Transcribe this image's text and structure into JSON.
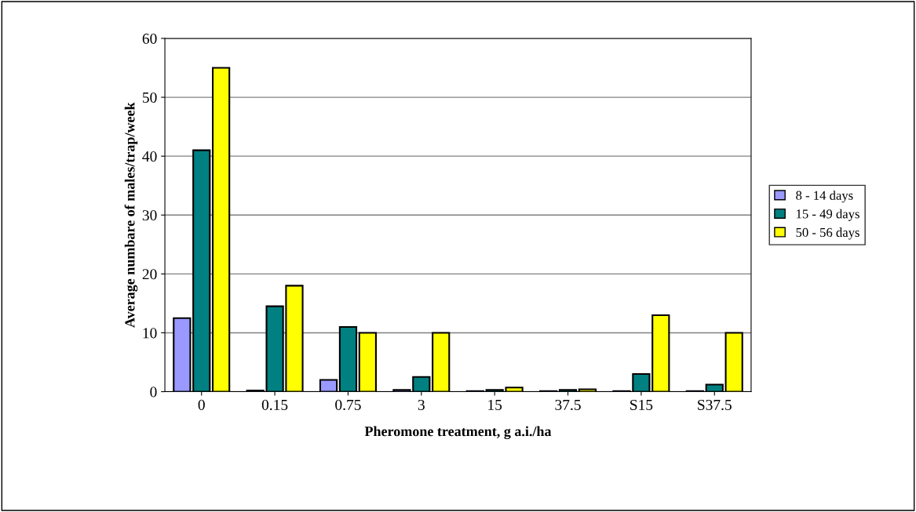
{
  "chart_data": {
    "type": "bar",
    "xlabel": "Pheromone treatment, g a.i./ha",
    "ylabel": "Average numbare of males/trap/week",
    "categories": [
      "0",
      "0.15",
      "0.75",
      "3",
      "15",
      "37.5",
      "S15",
      "S37.5"
    ],
    "series": [
      {
        "name": "8 - 14 days",
        "color": "#9999ff",
        "values": [
          12.5,
          0.2,
          2,
          0.3,
          0.1,
          0.1,
          0.1,
          0.1
        ]
      },
      {
        "name": "15 - 49 days",
        "color": "#008080",
        "values": [
          41,
          14.5,
          11,
          2.5,
          0.3,
          0.3,
          3,
          1.2
        ]
      },
      {
        "name": "50 - 56 days",
        "color": "#ffff00",
        "values": [
          55,
          18,
          10,
          10,
          0.7,
          0.4,
          13,
          10
        ]
      }
    ],
    "ylim": [
      0,
      60
    ],
    "yticks": [
      0,
      10,
      20,
      30,
      40,
      50,
      60
    ],
    "grid": "y",
    "legend": "right"
  }
}
